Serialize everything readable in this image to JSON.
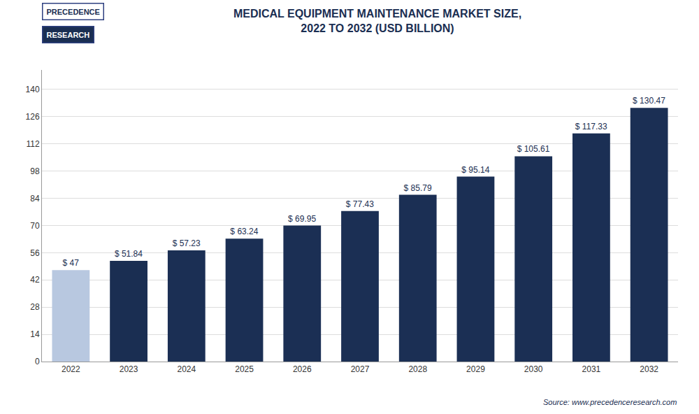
{
  "chart_data": {
    "type": "bar",
    "title": "MEDICAL EQUIPMENT MAINTENANCE MARKET SIZE,\n2022 TO 2032 (USD BILLION)",
    "categories": [
      "2022",
      "2023",
      "2024",
      "2025",
      "2026",
      "2027",
      "2028",
      "2029",
      "2030",
      "2031",
      "2032"
    ],
    "values": [
      47.0,
      51.84,
      57.23,
      63.24,
      69.95,
      77.43,
      85.79,
      95.14,
      105.61,
      117.33,
      130.47
    ],
    "value_labels": [
      "$ 47",
      "$ 51.84",
      "$ 57.23",
      "$ 63.24",
      "$ 69.95",
      "$ 77.43",
      "$ 85.79",
      "$ 95.14",
      "$ 105.61",
      "$ 117.33",
      "$ 130.47"
    ],
    "colors": [
      "#b8c8e0",
      "#1a2e52",
      "#1b2f54",
      "#1b2f54",
      "#1b2f54",
      "#1b2f54",
      "#1b2f54",
      "#1b2f54",
      "#1b2f54",
      "#1b2f54",
      "#1b2f54"
    ],
    "ylim": [
      0,
      150
    ],
    "yticks": [
      0,
      14,
      28,
      42,
      56,
      70,
      84,
      98,
      112,
      126,
      140
    ],
    "grid": true,
    "data_labels": true,
    "annotations": [
      "PRECEDENCE",
      "RESEARCH",
      "Source: www.precedenceresearch.com"
    ]
  }
}
